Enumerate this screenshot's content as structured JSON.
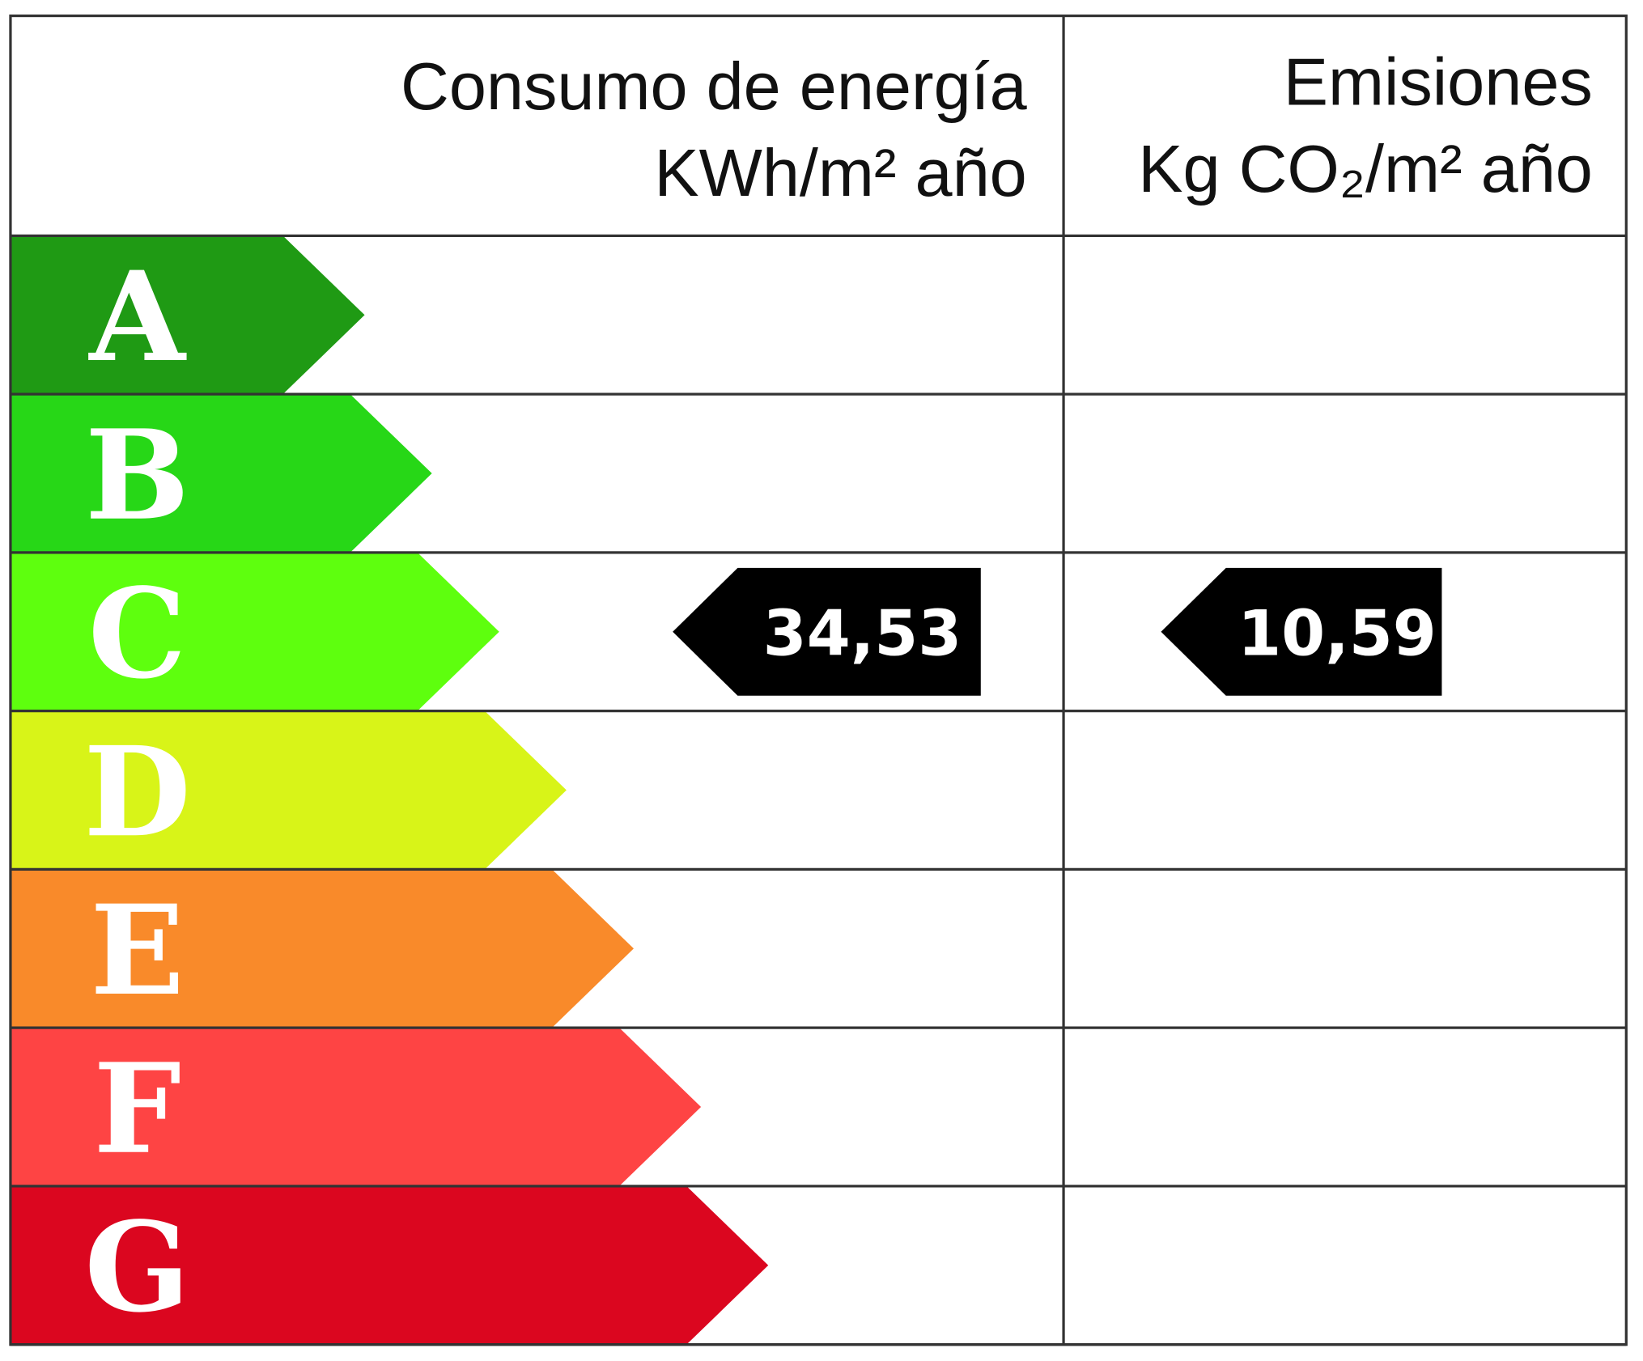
{
  "header": {
    "energy_title": "Consumo de energía",
    "energy_unit": "KWh/m² año",
    "emissions_title": "Emisiones",
    "emissions_unit": "Kg CO₂/m² año"
  },
  "rows": [
    {
      "letter": "A",
      "color": "#1f9a14"
    },
    {
      "letter": "B",
      "color": "#27d717"
    },
    {
      "letter": "C",
      "color": "#5eff0e",
      "energy": "34,53",
      "emissions": "10,59"
    },
    {
      "letter": "D",
      "color": "#d8f418"
    },
    {
      "letter": "E",
      "color": "#f98a2a"
    },
    {
      "letter": "F",
      "color": "#fe4444"
    },
    {
      "letter": "G",
      "color": "#db061f"
    }
  ]
}
